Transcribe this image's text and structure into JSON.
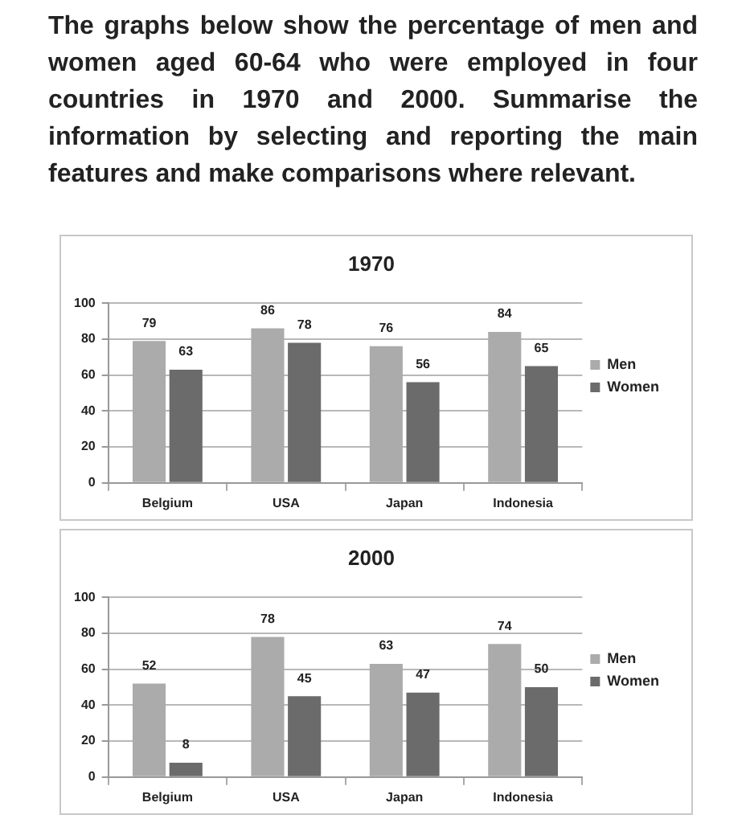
{
  "chart_data": [
    {
      "type": "bar",
      "title": "1970",
      "annotations": [
        "The graphs below show the percentage of men and women aged 60-64 who were employed in four countries in 1970 and 2000. Summarise the information by selecting and reporting the main features and make comparisons where relevant."
      ],
      "categories": [
        "Belgium",
        "USA",
        "Japan",
        "Indonesia"
      ],
      "series": [
        {
          "name": "Men",
          "color": "#ababab",
          "values": [
            79,
            86,
            76,
            84
          ]
        },
        {
          "name": "Women",
          "color": "#6b6b6b",
          "values": [
            63,
            78,
            56,
            65
          ]
        }
      ],
      "ylim": [
        0,
        100
      ],
      "yticks": [
        0,
        20,
        40,
        60,
        80,
        100
      ],
      "grid": "y",
      "legend": "right",
      "data_labels": true
    },
    {
      "type": "bar",
      "title": "2000",
      "categories": [
        "Belgium",
        "USA",
        "Japan",
        "Indonesia"
      ],
      "series": [
        {
          "name": "Men",
          "color": "#ababab",
          "values": [
            52,
            78,
            63,
            74
          ]
        },
        {
          "name": "Women",
          "color": "#6b6b6b",
          "values": [
            8,
            45,
            47,
            50
          ]
        }
      ],
      "ylim": [
        0,
        100
      ],
      "yticks": [
        0,
        20,
        40,
        60,
        80,
        100
      ],
      "grid": "y",
      "legend": "right",
      "data_labels": true
    }
  ]
}
